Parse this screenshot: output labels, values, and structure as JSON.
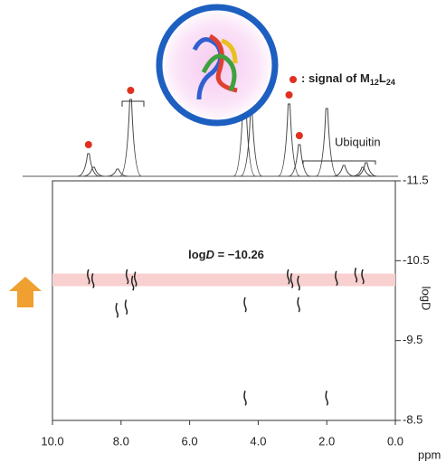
{
  "chart_data": {
    "type": "dosy",
    "x_label": "ppm",
    "y_label": "logD",
    "xlim": [
      10,
      0
    ],
    "xticks": [
      {
        "value": 10,
        "label": "10.0"
      },
      {
        "value": 8,
        "label": "8.0"
      },
      {
        "value": 6,
        "label": "6.0"
      },
      {
        "value": 4,
        "label": "4.0"
      },
      {
        "value": 2,
        "label": "2.0"
      },
      {
        "value": 0,
        "label": "0.0"
      }
    ],
    "ylim": [
      -11.5,
      -8.5
    ],
    "yticks": [
      -11.5,
      -10.5,
      -9.5,
      -8.5
    ],
    "annotation": {
      "text": [
        "log",
        "D",
        " = −10.26"
      ],
      "value": -10.26,
      "color": "#3a4aa0",
      "band_color": "#f8d0d0"
    },
    "legend": {
      "text": [
        ": signal of M",
        "12",
        "L",
        "24"
      ],
      "color": "#e03020"
    },
    "ubiquitin_label": "Ubiquitin",
    "spectrum": {
      "x": [
        8.95,
        8.8,
        8.1,
        7.72,
        4.4,
        4.2,
        3.1,
        2.8,
        2.0,
        1.5,
        0.95,
        0.85
      ],
      "values": [
        25,
        10,
        8,
        85,
        100,
        70,
        80,
        35,
        75,
        12,
        10,
        15
      ]
    },
    "m12l24_dots": {
      "x": [
        8.95,
        7.72,
        3.1,
        2.8
      ],
      "values": [
        35,
        95,
        90,
        45
      ]
    },
    "peaks": {
      "x": [
        8.95,
        8.82,
        7.82,
        7.66,
        7.58,
        3.12,
        3.02,
        2.82,
        1.72,
        1.15,
        0.95,
        8.12,
        7.85,
        4.38,
        2.82,
        4.38,
        2.0
      ],
      "values": [
        -10.3,
        -10.25,
        -10.3,
        -10.22,
        -10.27,
        -10.3,
        -10.25,
        -10.22,
        -10.28,
        -10.32,
        -10.3,
        -9.88,
        -9.92,
        -9.95,
        -9.95,
        -8.78,
        -8.78
      ],
      "color": "#222"
    }
  }
}
